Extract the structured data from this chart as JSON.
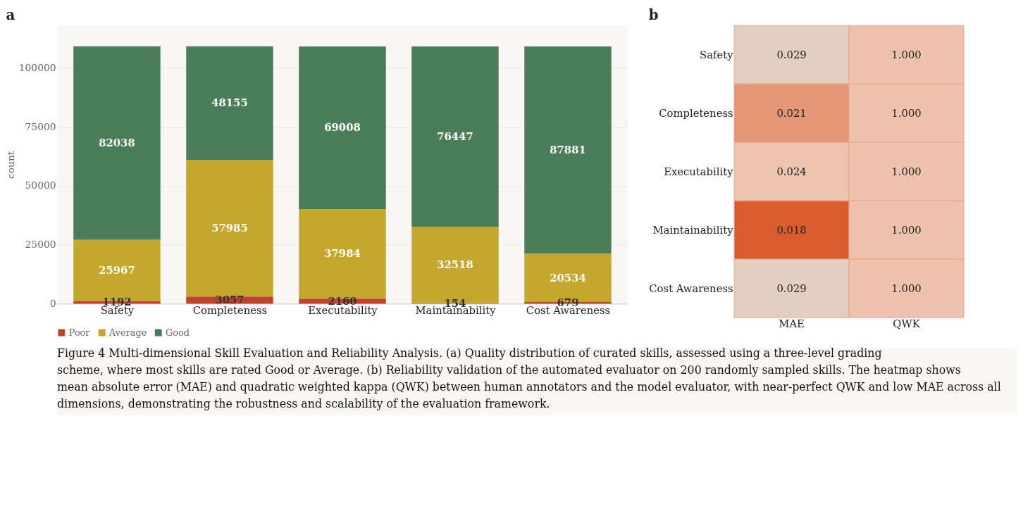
{
  "chart_data": [
    {
      "type": "bar",
      "title": "a",
      "stacked": true,
      "ylabel": "count",
      "categories": [
        "Safety",
        "Completeness",
        "Executability",
        "Maintainability",
        "Cost Awareness"
      ],
      "series": [
        {
          "name": "Poor",
          "color": "#c0432f",
          "values": [
            1192,
            3057,
            2160,
            154,
            679
          ]
        },
        {
          "name": "Average",
          "color": "#c4a72d",
          "values": [
            25967,
            57985,
            37984,
            32518,
            20534
          ]
        },
        {
          "name": "Good",
          "color": "#4a7d58",
          "values": [
            82038,
            48155,
            69008,
            76447,
            87881
          ]
        }
      ],
      "ylim": [
        0,
        118000
      ],
      "yticks": [
        0,
        25000,
        50000,
        75000,
        100000
      ],
      "grid": "y",
      "legend": "bottom",
      "data_labels": true,
      "annotations": [
        "Figure 4  Multi-dimensional Skill Evaluation and Reliability Analysis. (a) Quality distribution of curated skills, assessed using a three-level grading scheme, where most skills are rated Good or Average. (b) Reliability validation of the automated evaluator on 200 randomly sampled skills. The heatmap shows mean absolute error (MAE) and quadratic weighted kappa (QWK) between human annotators and the model evaluator, with near-perfect QWK and low MAE across all dimensions, demonstrating the robustness and scalability of the evaluation framework."
      ]
    },
    {
      "type": "heatmap",
      "title": "b",
      "categories": [
        "MAE",
        "QWK"
      ],
      "y_categories": [
        "Safety",
        "Completeness",
        "Executability",
        "Maintainability",
        "Cost Awareness"
      ],
      "cells": [
        [
          0.029,
          1.0
        ],
        [
          0.021,
          1.0
        ],
        [
          0.024,
          1.0
        ],
        [
          0.018,
          1.0
        ],
        [
          0.029,
          1.0
        ]
      ],
      "cell_labels": [
        [
          "0.029",
          "1.000"
        ],
        [
          "0.021",
          "1.000"
        ],
        [
          "0.024",
          "1.000"
        ],
        [
          "0.018",
          "1.000"
        ],
        [
          "0.029",
          "1.000"
        ]
      ]
    }
  ]
}
